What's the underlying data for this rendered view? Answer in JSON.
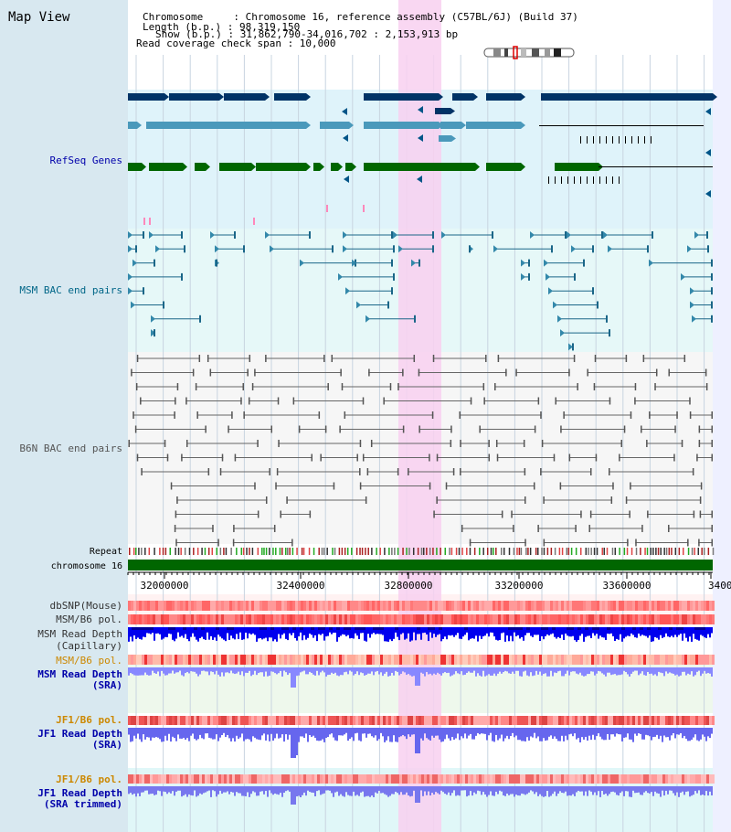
{
  "header": {
    "map_title": "Map View",
    "lines": [
      "Chromosome     : Chromosome 16, reference assembly (C57BL/6J) (Build 37)",
      "Length (b.p.) : 98,319,150",
      "Show (b.p.) : 31,862,790-34,016,702 : 2,153,913 bp",
      "Read coverage check span : 10,000"
    ]
  },
  "tracks": {
    "refseq": "RefSeq Genes",
    "msm_bac": "MSM BAC end pairs",
    "b6n_bac": "B6N BAC end pairs",
    "repeat": "Repeat",
    "chromosome": "chromosome 16",
    "dbsnp": "dbSNP(Mouse)",
    "msm_b6_pol_1": "MSM/B6 pol.",
    "msm_read_depth_cap_1": "MSM Read Depth",
    "msm_read_depth_cap_2": "(Capillary)",
    "msm_b6_pol_2": "MSM/B6 pol.",
    "msm_read_depth_sra_1": "MSM Read Depth",
    "msm_read_depth_sra_2": "(SRA)",
    "jf1_b6_pol_1": "JF1/B6 pol.",
    "jf1_read_depth_sra_1": "JF1 Read Depth",
    "jf1_read_depth_sra_2": "(SRA)",
    "jf1_b6_pol_2": "JF1/B6 pol.",
    "jf1_read_depth_trim_1": "JF1 Read Depth",
    "jf1_read_depth_trim_2": "(SRA trimmed)"
  },
  "ruler": {
    "labels": [
      "32000000",
      "32400000",
      "32800000",
      "33200000",
      "33600000",
      "3400"
    ]
  },
  "colors": {
    "header_bg": "#d8e8f0",
    "refseq_bg": "#dff3fa",
    "msm_bg": "#e6f8f8",
    "b6n_bg": "#f6f6f6",
    "highlight": "#f8d0f0",
    "gene_dark": "#003366",
    "gene_mid": "#4a99bb",
    "gene_green": "#006600",
    "msm_line": "#1a6688",
    "b6n_line": "#666666",
    "chrom_bar": "#006600",
    "label_blue": "#0000aa",
    "label_teal": "#006688",
    "label_orange": "#cc8800"
  }
}
